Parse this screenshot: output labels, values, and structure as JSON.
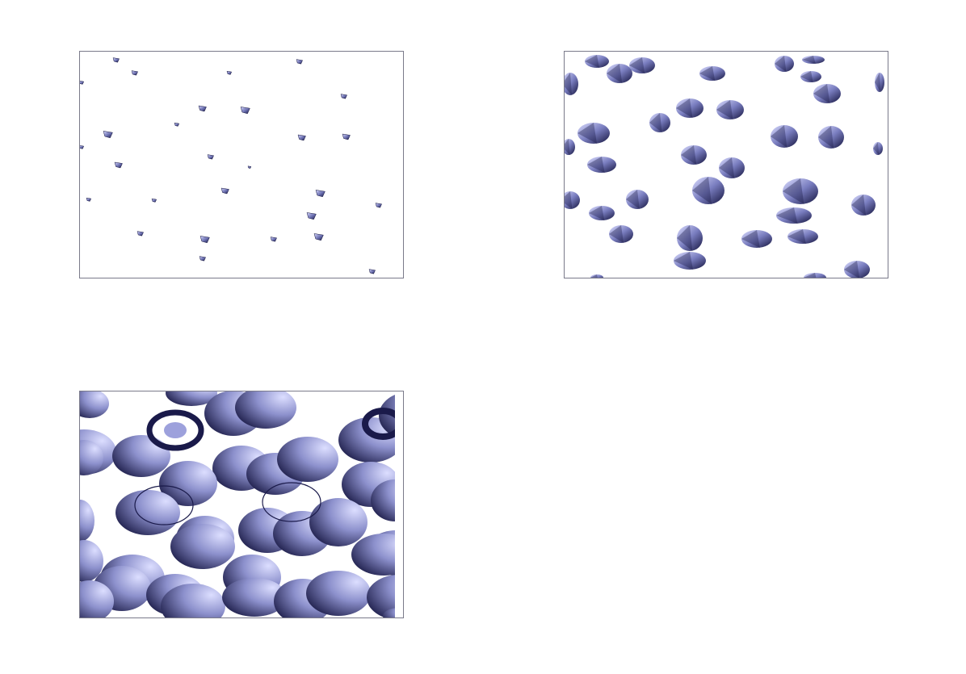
{
  "figure": {
    "panels": [
      {
        "id": "panel-1",
        "content": "small-particles",
        "particle_color": "#3a3d78"
      },
      {
        "id": "panel-2",
        "content": "medium-particles",
        "particle_color": "#3a3d78"
      },
      {
        "id": "panel-3",
        "content": "large-spheres",
        "particle_color": "#3a3d78",
        "ring_color": "#1a1a4a"
      }
    ],
    "colors": {
      "dark": "#14143e",
      "mid": "#6b6fb0",
      "light": "#d6d8ff",
      "frame": "#7a7a8a",
      "background": "#ffffff"
    }
  }
}
